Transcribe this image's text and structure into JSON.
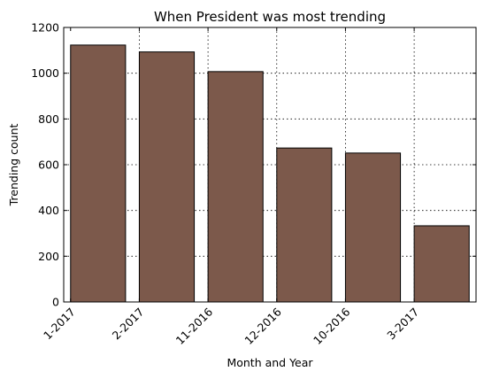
{
  "chart_data": {
    "type": "bar",
    "title": "When President was most trending",
    "xlabel": "Month and Year",
    "ylabel": "Trending count",
    "categories": [
      "1-2017",
      "2-2017",
      "11-2016",
      "12-2016",
      "10-2016",
      "3-2017"
    ],
    "values": [
      1123,
      1093,
      1007,
      673,
      651,
      333
    ],
    "ylim": [
      0,
      1200
    ],
    "yticks": [
      "0",
      "200",
      "400",
      "600",
      "800",
      "1000",
      "1200"
    ],
    "grid": true,
    "bar_color": "#7c594b",
    "edge_color": "#000000"
  }
}
